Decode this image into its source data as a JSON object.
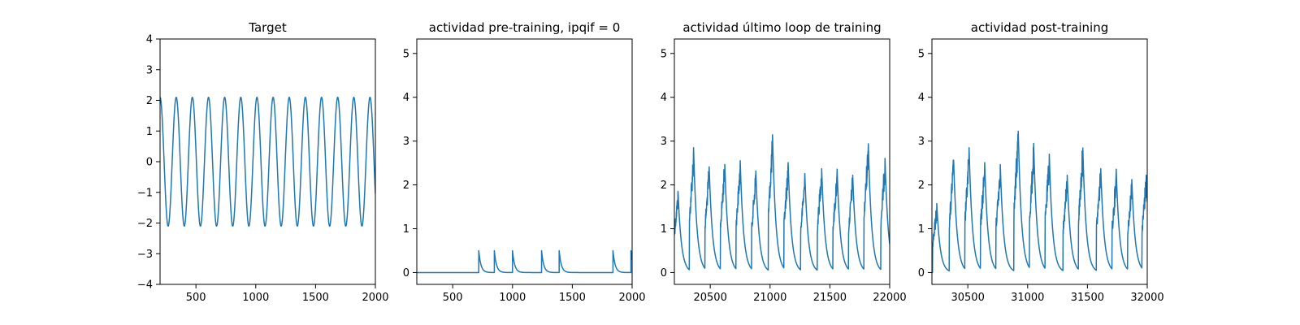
{
  "chart_data": [
    {
      "type": "line",
      "title": "Target",
      "xlim": [
        200,
        2000
      ],
      "ylim": [
        -4,
        4
      ],
      "xticks": [
        500,
        1000,
        1500,
        2000
      ],
      "xtick_labels": [
        "500",
        "1000",
        "1500",
        "2000"
      ],
      "yticks": [
        -4,
        -3,
        -2,
        -1,
        0,
        1,
        2,
        3,
        4
      ],
      "ytick_labels": [
        "−4",
        "−3",
        "−2",
        "−1",
        "0",
        "1",
        "2",
        "3",
        "4"
      ],
      "series": [
        {
          "color": "#1f77b4",
          "generator": "sine",
          "amplitude": 2.1,
          "period": 135,
          "phase_start": 200
        }
      ]
    },
    {
      "type": "line",
      "title": "actividad pre-training, ipqif = 0",
      "xlim": [
        200,
        2000
      ],
      "ylim": [
        -0.27,
        5.33
      ],
      "xticks": [
        500,
        1000,
        1500,
        2000
      ],
      "xtick_labels": [
        "500",
        "1000",
        "1500",
        "2000"
      ],
      "yticks": [
        0,
        1,
        2,
        3,
        4,
        5
      ],
      "ytick_labels": [
        "0",
        "1",
        "2",
        "3",
        "4",
        "5"
      ],
      "series": [
        {
          "color": "#1f77b4",
          "generator": "spikes",
          "baseline": 0,
          "spike_times": [
            718,
            848,
            1000,
            1243,
            1390,
            1840,
            1990
          ],
          "spike_height": 0.5,
          "decay": 18
        }
      ]
    },
    {
      "type": "line",
      "title": "actividad último loop de training",
      "xlim": [
        20200,
        22000
      ],
      "ylim": [
        -0.27,
        5.33
      ],
      "xticks": [
        20500,
        21000,
        21500,
        22000
      ],
      "xtick_labels": [
        "20500",
        "21000",
        "21500",
        "22000"
      ],
      "yticks": [
        0,
        1,
        2,
        3,
        4,
        5
      ],
      "ytick_labels": [
        "0",
        "1",
        "2",
        "3",
        "4",
        "5"
      ],
      "series": [
        {
          "color": "#1f77b4",
          "generator": "bursts",
          "peaks": [
            [
              20230,
              1.9
            ],
            [
              20360,
              2.9
            ],
            [
              20490,
              2.5
            ],
            [
              20620,
              2.6
            ],
            [
              20750,
              2.6
            ],
            [
              20880,
              2.4
            ],
            [
              21020,
              3.2
            ],
            [
              21150,
              2.6
            ],
            [
              21290,
              2.3
            ],
            [
              21430,
              2.5
            ],
            [
              21560,
              2.4
            ],
            [
              21690,
              2.3
            ],
            [
              21820,
              3.1
            ],
            [
              21960,
              2.7
            ]
          ],
          "rise": 35,
          "decay": 28,
          "jitter": 0.22
        }
      ]
    },
    {
      "type": "line",
      "title": "actividad post-training",
      "xlim": [
        30200,
        32000
      ],
      "ylim": [
        -0.27,
        5.33
      ],
      "xticks": [
        30500,
        31000,
        31500,
        32000
      ],
      "xtick_labels": [
        "30500",
        "31000",
        "31500",
        "32000"
      ],
      "yticks": [
        0,
        1,
        2,
        3,
        4,
        5
      ],
      "ytick_labels": [
        "0",
        "1",
        "2",
        "3",
        "4",
        "5"
      ],
      "series": [
        {
          "color": "#1f77b4",
          "generator": "bursts",
          "peaks": [
            [
              30240,
              1.6
            ],
            [
              30380,
              2.7
            ],
            [
              30510,
              2.9
            ],
            [
              30640,
              2.6
            ],
            [
              30770,
              2.6
            ],
            [
              30920,
              3.4
            ],
            [
              31050,
              3.0
            ],
            [
              31180,
              2.8
            ],
            [
              31330,
              2.3
            ],
            [
              31460,
              3.0
            ],
            [
              31610,
              2.5
            ],
            [
              31740,
              2.4
            ],
            [
              31870,
              2.2
            ],
            [
              31990,
              2.3
            ]
          ],
          "rise": 35,
          "decay": 28,
          "jitter": 0.25
        }
      ]
    }
  ]
}
